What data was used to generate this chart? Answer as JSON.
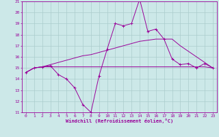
{
  "xlabel": "Windchill (Refroidissement éolien,°C)",
  "bg_color": "#cce8e8",
  "line_color": "#990099",
  "grid_color": "#aacccc",
  "x_values": [
    0,
    1,
    2,
    3,
    4,
    5,
    6,
    7,
    8,
    9,
    10,
    11,
    12,
    13,
    14,
    15,
    16,
    17,
    18,
    19,
    20,
    21,
    22,
    23
  ],
  "series1": [
    14.6,
    15.0,
    15.1,
    15.2,
    14.4,
    14.0,
    13.2,
    11.7,
    11.0,
    14.3,
    16.7,
    19.0,
    18.8,
    19.0,
    21.2,
    18.3,
    18.5,
    17.6,
    15.8,
    15.3,
    15.4,
    15.0,
    15.4,
    15.0
  ],
  "series2_flat": [
    14.6,
    15.0,
    15.1,
    15.1,
    15.1,
    15.1,
    15.1,
    15.1,
    15.1,
    15.1,
    15.1,
    15.1,
    15.1,
    15.1,
    15.1,
    15.1,
    15.1,
    15.1,
    15.1,
    15.1,
    15.1,
    15.1,
    15.1,
    15.0
  ],
  "series3_trend": [
    14.6,
    15.0,
    15.1,
    15.3,
    15.5,
    15.7,
    15.9,
    16.1,
    16.2,
    16.4,
    16.6,
    16.8,
    17.0,
    17.2,
    17.4,
    17.5,
    17.6,
    17.6,
    17.6,
    17.0,
    16.5,
    16.0,
    15.5,
    15.0
  ],
  "ylim": [
    11,
    21
  ],
  "xlim": [
    -0.5,
    23.5
  ],
  "yticks": [
    11,
    12,
    13,
    14,
    15,
    16,
    17,
    18,
    19,
    20,
    21
  ],
  "xticks": [
    0,
    1,
    2,
    3,
    4,
    5,
    6,
    7,
    8,
    9,
    10,
    11,
    12,
    13,
    14,
    15,
    16,
    17,
    18,
    19,
    20,
    21,
    22,
    23
  ]
}
